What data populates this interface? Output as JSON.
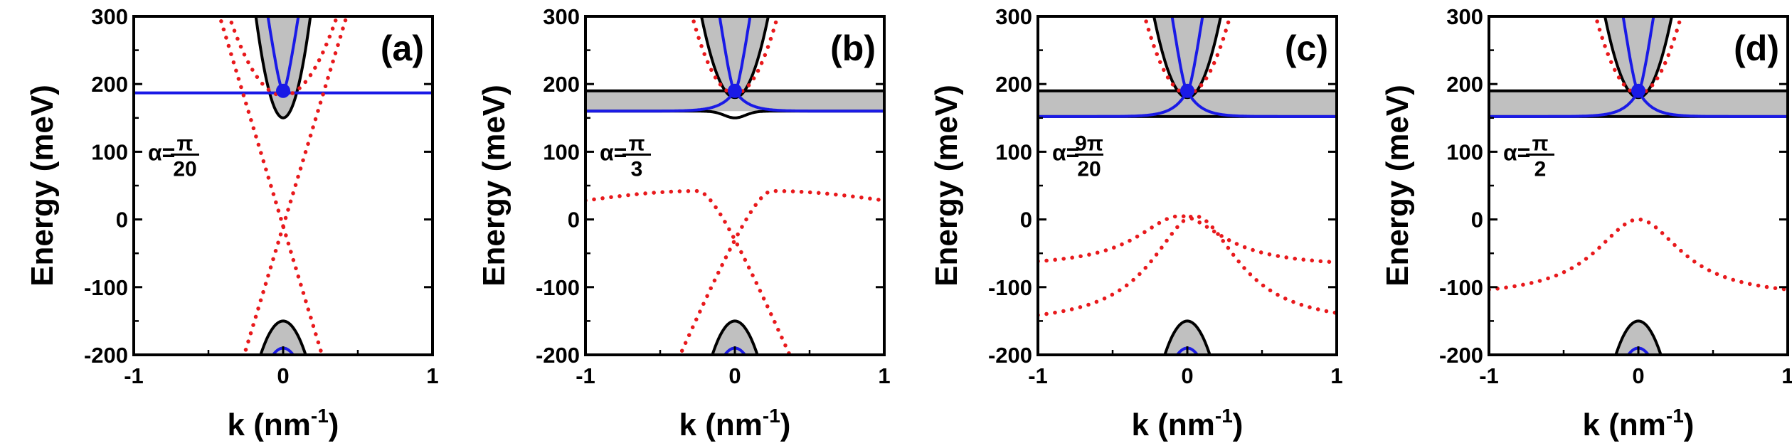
{
  "chart_data": [
    {
      "type": "line",
      "panel_label": "(a)",
      "xlabel": "k (nm",
      "xlabel_sup": "-1",
      "xlabel_end": ")",
      "ylabel": "Energy (meV)",
      "xlim": [
        -1,
        1
      ],
      "ylim": [
        -200,
        300
      ],
      "xticks": [
        "-1",
        "0",
        "1"
      ],
      "yticks": [
        "-200",
        "-100",
        "0",
        "100",
        "200",
        "300"
      ],
      "alpha": {
        "prefix": "α=",
        "num": "π",
        "den": "20"
      },
      "flat_band": 187,
      "conduction_min": 150,
      "conduction_dip_width": 0.2,
      "blue_cone_vertex": 190,
      "blue_cone_slope": 1500,
      "flat_color": "blue",
      "flat_fill": false,
      "dirac_point": {
        "k": 0,
        "E": 190
      },
      "red_dotted": [
        {
          "name": "surface-state-1",
          "model": "cross",
          "E0": -10,
          "v": 730
        },
        {
          "name": "surface-state-2",
          "model": "cross_neg",
          "E0": -10,
          "v": 730
        },
        {
          "name": "conduction-outer",
          "model": "parabola",
          "E0": 183,
          "a": 900,
          "b": 0
        }
      ],
      "valence": {
        "black_max": -150,
        "blue_max": -190
      }
    },
    {
      "type": "line",
      "panel_label": "(b)",
      "xlabel": "k (nm",
      "xlabel_sup": "-1",
      "xlabel_end": ")",
      "ylabel": "Energy (meV)",
      "xlim": [
        -1,
        1
      ],
      "ylim": [
        -200,
        300
      ],
      "xticks": [
        "-1",
        "0",
        "1"
      ],
      "yticks": [
        "-200",
        "-100",
        "0",
        "100",
        "200",
        "300"
      ],
      "alpha": {
        "prefix": "α=",
        "num": "π",
        "den": "3"
      },
      "flat_band": 190,
      "band_bottom": 160,
      "band_dip": 150,
      "blue_cone_vertex": 190,
      "blue_cone_slope": 1500,
      "flat_color": "black",
      "flat_fill": true,
      "dirac_point": {
        "k": 0,
        "E": 190
      },
      "red_dotted": [
        {
          "name": "surface-state-1",
          "model": "bump",
          "E0": 28,
          "peak": 42,
          "kpeak": -0.25,
          "slope": 520
        },
        {
          "name": "surface-state-2",
          "model": "bump_mirror",
          "E0": 28,
          "peak": 42,
          "kpeak": 0.25,
          "slope": 520
        },
        {
          "name": "conduction-outer",
          "model": "parabola",
          "E0": 186,
          "a": 1400,
          "b": 0
        }
      ],
      "valence": {
        "black_max": -150,
        "blue_max": -190
      }
    },
    {
      "type": "line",
      "panel_label": "(c)",
      "xlabel": "k (nm",
      "xlabel_sup": "-1",
      "xlabel_end": ")",
      "ylabel": "Energy (meV)",
      "xlim": [
        -1,
        1
      ],
      "ylim": [
        -200,
        300
      ],
      "xticks": [
        "-1",
        "0",
        "1"
      ],
      "yticks": [
        "-200",
        "-100",
        "0",
        "100",
        "200",
        "300"
      ],
      "alpha": {
        "prefix": "α=",
        "num": "9π",
        "den": "20"
      },
      "flat_band": 190,
      "band_bottom": 152,
      "band_dip": 152,
      "blue_cone_vertex": 190,
      "blue_cone_slope": 1500,
      "flat_color": "black",
      "flat_fill": true,
      "dirac_point": {
        "k": 0,
        "E": 190
      },
      "red_dotted": [
        {
          "name": "surface-state-1",
          "model": "lorentz",
          "E0": 5,
          "k0": -0.05,
          "end": -72
        },
        {
          "name": "surface-state-2",
          "model": "lorentz",
          "E0": 5,
          "k0": 0.05,
          "end": -160
        },
        {
          "name": "conduction-outer",
          "model": "parabola",
          "E0": 186,
          "a": 1400,
          "b": 0
        }
      ],
      "valence": {
        "black_max": -150,
        "blue_max": -190
      }
    },
    {
      "type": "line",
      "panel_label": "(d)",
      "xlabel": "k (nm",
      "xlabel_sup": "-1",
      "xlabel_end": ")",
      "ylabel": "Energy (meV)",
      "xlim": [
        -1,
        1
      ],
      "ylim": [
        -200,
        300
      ],
      "xticks": [
        "-1",
        "0",
        "1"
      ],
      "yticks": [
        "-200",
        "-100",
        "0",
        "100",
        "200",
        "300"
      ],
      "alpha": {
        "prefix": "α=",
        "num": "π",
        "den": "2"
      },
      "flat_band": 190,
      "band_bottom": 152,
      "band_dip": 152,
      "blue_cone_vertex": 190,
      "blue_cone_slope": 1500,
      "flat_color": "black",
      "flat_fill": true,
      "dirac_point": {
        "k": 0,
        "E": 190
      },
      "red_dotted": [
        {
          "name": "surface-state-1",
          "model": "lorentz",
          "E0": 0,
          "k0": 0,
          "end": -118
        },
        {
          "name": "conduction-outer",
          "model": "parabola",
          "E0": 186,
          "a": 1400,
          "b": 0
        }
      ],
      "valence": {
        "black_max": -150,
        "blue_max": -190
      }
    }
  ],
  "colors": {
    "red": "#e8191c",
    "blue": "#1a1ae6",
    "black": "#000000",
    "gray": "#c0c0c0"
  }
}
